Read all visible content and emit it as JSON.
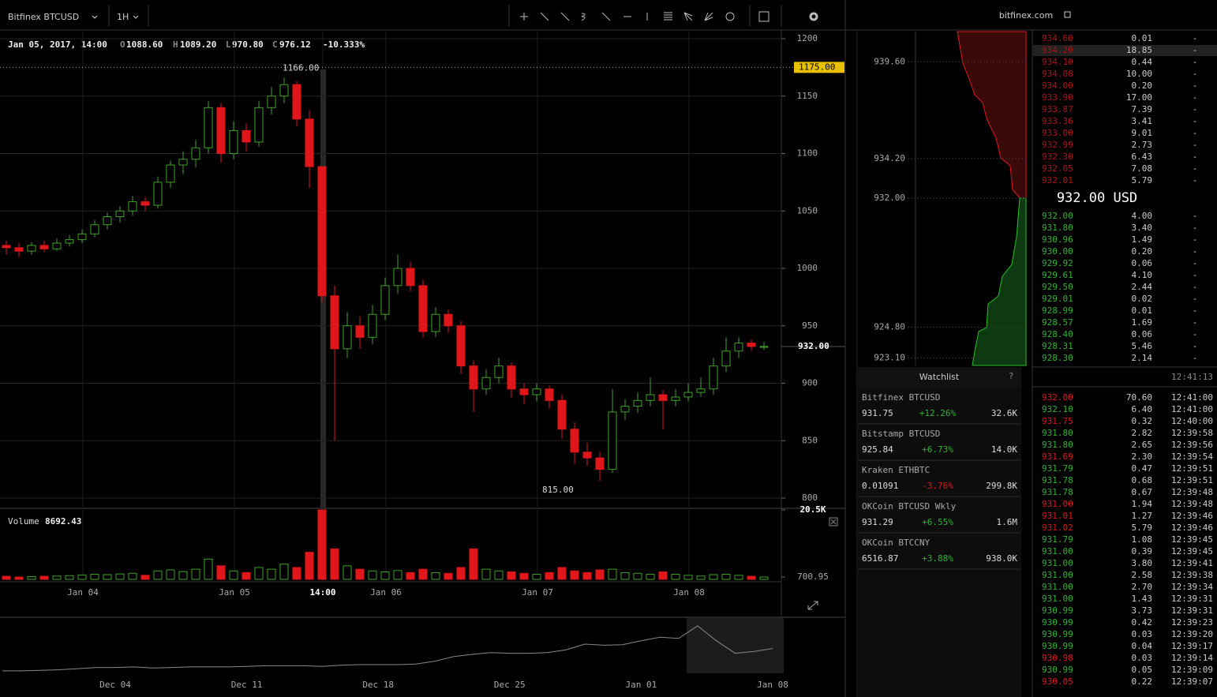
{
  "header": {
    "symbol": "Bitfinex BTCUSD",
    "interval": "1H",
    "site": "bitfinex.com"
  },
  "ohlc": {
    "date": "Jan 05, 2017, 14:00",
    "o_label": "O",
    "o": "1088.60",
    "h_label": "H",
    "h": "1089.20",
    "l_label": "L",
    "l": "970.80",
    "c_label": "C",
    "c": "976.12",
    "change": "-10.333%"
  },
  "chart": {
    "ylim": [
      800,
      1200
    ],
    "yticks": [
      800,
      850,
      900,
      950,
      1000,
      1050,
      1100,
      1150,
      1200
    ],
    "price_line": {
      "value": 1175,
      "label": "1175.00"
    },
    "last_price": {
      "value": 932,
      "label": "932.00"
    },
    "high": {
      "value": 1166,
      "label": "1166.00"
    },
    "low": {
      "value": 815,
      "label": "815.00"
    },
    "time_labels": [
      "Jan 04",
      "Jan 05",
      "14:00",
      "Jan 06",
      "Jan 07",
      "Jan 08"
    ],
    "candles": [
      [
        1020,
        1024,
        1012,
        1018
      ],
      [
        1018,
        1022,
        1010,
        1015
      ],
      [
        1015,
        1023,
        1012,
        1020
      ],
      [
        1020,
        1024,
        1014,
        1017
      ],
      [
        1017,
        1026,
        1015,
        1022
      ],
      [
        1022,
        1029,
        1019,
        1025
      ],
      [
        1025,
        1034,
        1022,
        1030
      ],
      [
        1030,
        1042,
        1027,
        1038
      ],
      [
        1038,
        1049,
        1034,
        1045
      ],
      [
        1045,
        1054,
        1040,
        1050
      ],
      [
        1050,
        1063,
        1046,
        1058
      ],
      [
        1058,
        1062,
        1050,
        1055
      ],
      [
        1055,
        1080,
        1052,
        1075
      ],
      [
        1075,
        1094,
        1070,
        1090
      ],
      [
        1090,
        1102,
        1082,
        1095
      ],
      [
        1095,
        1112,
        1088,
        1105
      ],
      [
        1105,
        1146,
        1100,
        1140
      ],
      [
        1140,
        1144,
        1092,
        1100
      ],
      [
        1100,
        1128,
        1095,
        1120
      ],
      [
        1120,
        1126,
        1102,
        1110
      ],
      [
        1110,
        1146,
        1106,
        1140
      ],
      [
        1140,
        1158,
        1134,
        1150
      ],
      [
        1150,
        1166,
        1144,
        1160
      ],
      [
        1160,
        1163,
        1124,
        1130
      ],
      [
        1130,
        1138,
        1070,
        1088.6
      ],
      [
        1088.6,
        1089.2,
        970.8,
        976.12
      ],
      [
        976.12,
        985,
        850,
        930
      ],
      [
        930,
        962,
        922,
        950
      ],
      [
        950,
        958,
        930,
        940
      ],
      [
        940,
        968,
        934,
        960
      ],
      [
        960,
        992,
        955,
        985
      ],
      [
        985,
        1012,
        978,
        1000
      ],
      [
        1000,
        1006,
        980,
        985
      ],
      [
        985,
        990,
        940,
        945
      ],
      [
        945,
        966,
        940,
        960
      ],
      [
        960,
        964,
        944,
        950
      ],
      [
        950,
        954,
        908,
        915
      ],
      [
        915,
        920,
        875,
        895
      ],
      [
        895,
        912,
        890,
        905
      ],
      [
        905,
        922,
        900,
        915
      ],
      [
        915,
        918,
        888,
        895
      ],
      [
        895,
        900,
        882,
        890
      ],
      [
        890,
        900,
        884,
        895
      ],
      [
        895,
        898,
        878,
        885
      ],
      [
        885,
        890,
        852,
        860
      ],
      [
        860,
        866,
        830,
        840
      ],
      [
        840,
        848,
        828,
        835
      ],
      [
        835,
        840,
        815,
        825
      ],
      [
        825,
        895,
        822,
        875
      ],
      [
        875,
        886,
        868,
        880
      ],
      [
        880,
        892,
        874,
        885
      ],
      [
        885,
        905,
        880,
        890
      ],
      [
        890,
        894,
        860,
        885
      ],
      [
        885,
        895,
        880,
        888
      ],
      [
        888,
        900,
        884,
        892
      ],
      [
        892,
        905,
        888,
        895
      ],
      [
        895,
        922,
        890,
        915
      ],
      [
        915,
        940,
        910,
        928
      ],
      [
        928,
        940,
        922,
        935
      ],
      [
        935,
        938,
        928,
        932
      ],
      [
        932,
        936,
        929,
        932
      ]
    ],
    "volume_title": "Volume",
    "volume_value": "8692.43",
    "vticks": [
      {
        "value": 20500,
        "label": "20.5K"
      },
      {
        "value": 700.95,
        "label": "700.95"
      }
    ],
    "vlim": [
      0,
      20500
    ],
    "volumes": [
      900,
      700,
      800,
      900,
      1000,
      1100,
      1300,
      1500,
      1400,
      1600,
      1800,
      1200,
      2500,
      2800,
      2300,
      3000,
      6000,
      4000,
      2500,
      2000,
      3500,
      3000,
      4500,
      3500,
      8000,
      20500,
      9000,
      4000,
      3000,
      2500,
      2200,
      2600,
      2000,
      3000,
      2000,
      1800,
      3500,
      9000,
      3000,
      2500,
      2200,
      1800,
      1500,
      2000,
      3500,
      2500,
      2000,
      2800,
      3000,
      2000,
      1800,
      1500,
      2200,
      1500,
      1200,
      1000,
      1400,
      1500,
      1200,
      900,
      700
    ]
  },
  "navigator": {
    "labels": [
      "Dec 04",
      "Dec 11",
      "Dec 18",
      "Dec 25",
      "Jan 01",
      "Jan 08"
    ],
    "ylim": [
      700,
      1150
    ],
    "values": [
      735,
      735,
      740,
      745,
      755,
      765,
      765,
      770,
      760,
      765,
      770,
      770,
      770,
      775,
      780,
      780,
      780,
      775,
      785,
      790,
      790,
      790,
      795,
      820,
      860,
      880,
      895,
      890,
      890,
      895,
      920,
      970,
      960,
      965,
      1000,
      1030,
      1020,
      1130,
      1000,
      890,
      905,
      932
    ]
  },
  "depth": {
    "ticks": [
      {
        "value": 939.6,
        "label": "939.60"
      },
      {
        "value": 934.2,
        "label": "934.20"
      },
      {
        "value": 932,
        "label": "932.00"
      },
      {
        "value": 924.8,
        "label": "924.80"
      },
      {
        "value": 923.1,
        "label": "923.10"
      }
    ]
  },
  "orderbook": {
    "asks": [
      [
        "934.60",
        "0.01"
      ],
      [
        "934.20",
        "18.85"
      ],
      [
        "934.10",
        "0.44"
      ],
      [
        "934.08",
        "10.00"
      ],
      [
        "934.00",
        "0.20"
      ],
      [
        "933.90",
        "17.00"
      ],
      [
        "933.87",
        "7.39"
      ],
      [
        "933.36",
        "3.41"
      ],
      [
        "933.00",
        "9.01"
      ],
      [
        "932.99",
        "2.73"
      ],
      [
        "932.30",
        "6.43"
      ],
      [
        "932.05",
        "7.08"
      ],
      [
        "932.01",
        "5.79"
      ]
    ],
    "mid": "932.00 USD",
    "dash": "-",
    "bids": [
      [
        "932.00",
        "4.00"
      ],
      [
        "931.80",
        "3.40"
      ],
      [
        "930.96",
        "1.49"
      ],
      [
        "930.00",
        "0.20"
      ],
      [
        "929.92",
        "0.06"
      ],
      [
        "929.61",
        "4.10"
      ],
      [
        "929.50",
        "2.44"
      ],
      [
        "929.01",
        "0.02"
      ],
      [
        "928.99",
        "0.01"
      ],
      [
        "928.57",
        "1.69"
      ],
      [
        "928.40",
        "0.06"
      ],
      [
        "928.31",
        "5.46"
      ],
      [
        "928.30",
        "2.14"
      ]
    ]
  },
  "watchlist": {
    "title": "Watchlist",
    "help": "?",
    "items": [
      {
        "name": "Bitfinex BTCUSD",
        "price": "931.75",
        "change": "+12.26%",
        "volume": "32.6K",
        "up": true
      },
      {
        "name": "Bitstamp BTCUSD",
        "price": "925.84",
        "change": "+6.73%",
        "volume": "14.0K",
        "up": true
      },
      {
        "name": "Kraken ETHBTC",
        "price": "0.01091",
        "change": "-3.76%",
        "volume": "299.8K",
        "up": false
      },
      {
        "name": "OKCoin BTCUSD Wkly",
        "price": "931.29",
        "change": "+6.55%",
        "volume": "1.6M",
        "up": true
      },
      {
        "name": "OKCoin BTCCNY",
        "price": "6516.87",
        "change": "+3.88%",
        "volume": "938.0K",
        "up": true
      }
    ]
  },
  "trades": {
    "time": "12:41:13",
    "rows": [
      [
        "932.00",
        "70.60",
        "12:41:00",
        "sell"
      ],
      [
        "932.10",
        "6.40",
        "12:41:00",
        "buy"
      ],
      [
        "931.75",
        "0.32",
        "12:40:00",
        "sell"
      ],
      [
        "931.80",
        "2.82",
        "12:39:58",
        "buy"
      ],
      [
        "931.80",
        "2.65",
        "12:39:56",
        "buy"
      ],
      [
        "931.69",
        "2.30",
        "12:39:54",
        "sell"
      ],
      [
        "931.79",
        "0.47",
        "12:39:51",
        "buy"
      ],
      [
        "931.78",
        "0.68",
        "12:39:51",
        "buy"
      ],
      [
        "931.78",
        "0.67",
        "12:39:48",
        "buy"
      ],
      [
        "931.00",
        "1.94",
        "12:39:48",
        "sell"
      ],
      [
        "931.01",
        "1.27",
        "12:39:46",
        "sell"
      ],
      [
        "931.02",
        "5.79",
        "12:39:46",
        "sell"
      ],
      [
        "931.79",
        "1.08",
        "12:39:45",
        "buy"
      ],
      [
        "931.00",
        "0.39",
        "12:39:45",
        "buy"
      ],
      [
        "931.00",
        "3.80",
        "12:39:41",
        "buy"
      ],
      [
        "931.00",
        "2.58",
        "12:39:38",
        "buy"
      ],
      [
        "931.00",
        "2.70",
        "12:39:34",
        "buy"
      ],
      [
        "931.00",
        "1.43",
        "12:39:31",
        "buy"
      ],
      [
        "930.99",
        "3.73",
        "12:39:31",
        "buy"
      ],
      [
        "930.99",
        "0.42",
        "12:39:23",
        "buy"
      ],
      [
        "930.99",
        "0.03",
        "12:39:20",
        "buy"
      ],
      [
        "930.99",
        "0.04",
        "12:39:17",
        "buy"
      ],
      [
        "930.98",
        "0.03",
        "12:39:14",
        "sell"
      ],
      [
        "930.99",
        "0.05",
        "12:39:09",
        "buy"
      ],
      [
        "930.05",
        "0.22",
        "12:39:07",
        "sell"
      ]
    ]
  }
}
